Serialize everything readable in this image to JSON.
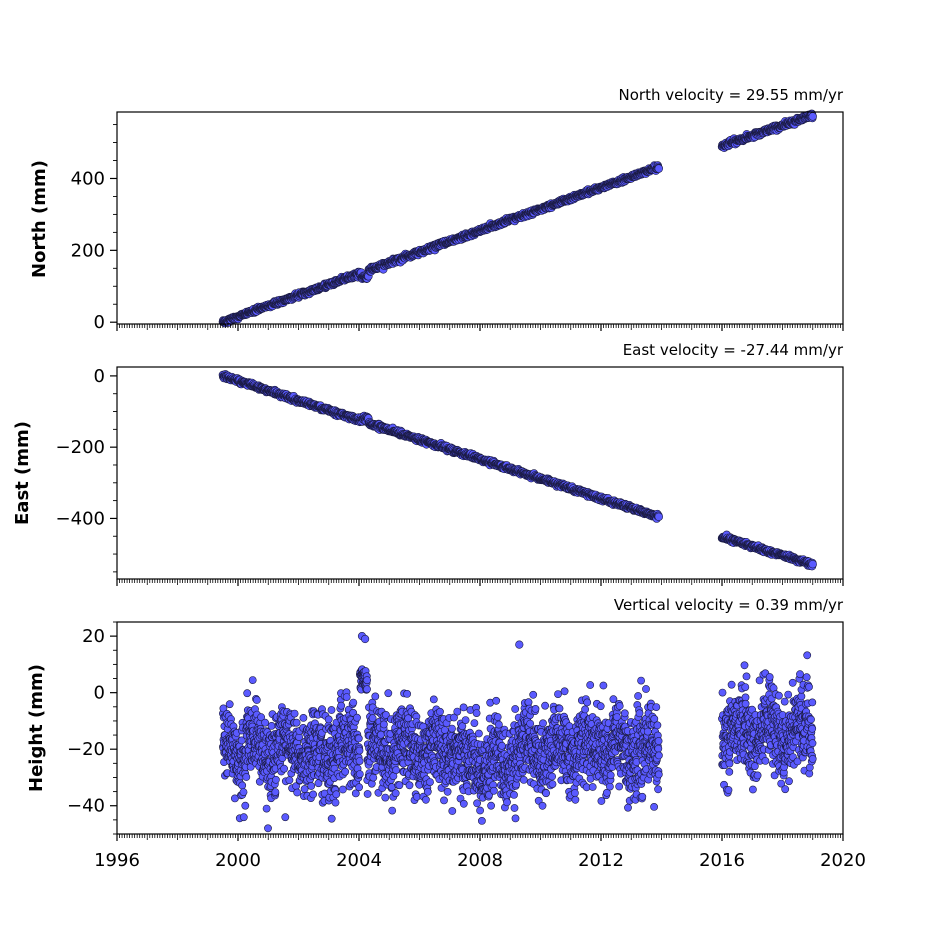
{
  "colors": {
    "marker_fill": "#5a5aff",
    "marker_edge": "#1a1a40",
    "axes": "#000000",
    "background": "#ffffff"
  },
  "chart_data": {
    "type": "scatter",
    "layout": "three stacked panels sharing the x axis",
    "x_axis": {
      "range": [
        1996,
        2020
      ],
      "ticks": [
        "1996",
        "2000",
        "2004",
        "2008",
        "2012",
        "2016",
        "2020"
      ],
      "minor_ticks": "monthly"
    },
    "marker": "circle",
    "grid": false,
    "panels": [
      {
        "key": "north",
        "ylabel": "North (mm)",
        "annotation": "North velocity = 29.55 mm/yr",
        "ylim": [
          -5,
          585
        ],
        "yticks": [
          "0",
          "200",
          "400"
        ],
        "segments": [
          {
            "x_start": 1999.5,
            "x_end": 2013.92,
            "y_start": 0,
            "y_end": 432
          },
          {
            "x_start": 2016.0,
            "x_end": 2019.0,
            "y_start": 490,
            "y_end": 576
          }
        ],
        "events": [
          {
            "x": 2004.2,
            "y": 125,
            "spread": 12
          }
        ],
        "noise": 3
      },
      {
        "key": "east",
        "ylabel": "East (mm)",
        "annotation": "East velocity = -27.44 mm/yr",
        "ylim": [
          -570,
          25
        ],
        "yticks": [
          "0",
          "−200",
          "−400"
        ],
        "segments": [
          {
            "x_start": 1999.5,
            "x_end": 2013.92,
            "y_start": 0,
            "y_end": -396
          },
          {
            "x_start": 2016.0,
            "x_end": 2019.0,
            "y_start": -452,
            "y_end": -530
          }
        ],
        "events": [
          {
            "x": 2004.2,
            "y": -120,
            "spread": 16
          }
        ],
        "noise": 3
      },
      {
        "key": "height",
        "ylabel": "Height (mm)",
        "annotation": "Vertical velocity = 0.39 mm/yr",
        "ylim": [
          -50,
          25
        ],
        "yticks": [
          "20",
          "0",
          "−20",
          "−40"
        ],
        "segments": [
          {
            "x_start": 1999.5,
            "x_end": 2013.92,
            "y_start": -20,
            "y_end": -20
          },
          {
            "x_start": 2016.0,
            "x_end": 2019.0,
            "y_start": -14,
            "y_end": -14
          }
        ],
        "events": [
          {
            "x": 2004.15,
            "y": 5,
            "spread": 8
          }
        ],
        "outliers": [
          {
            "x": 2004.1,
            "y": 20
          },
          {
            "x": 2004.2,
            "y": 19
          },
          {
            "x": 2009.3,
            "y": 17
          }
        ],
        "noise": 7,
        "ylim_clip": [
          -48,
          21
        ]
      }
    ]
  }
}
